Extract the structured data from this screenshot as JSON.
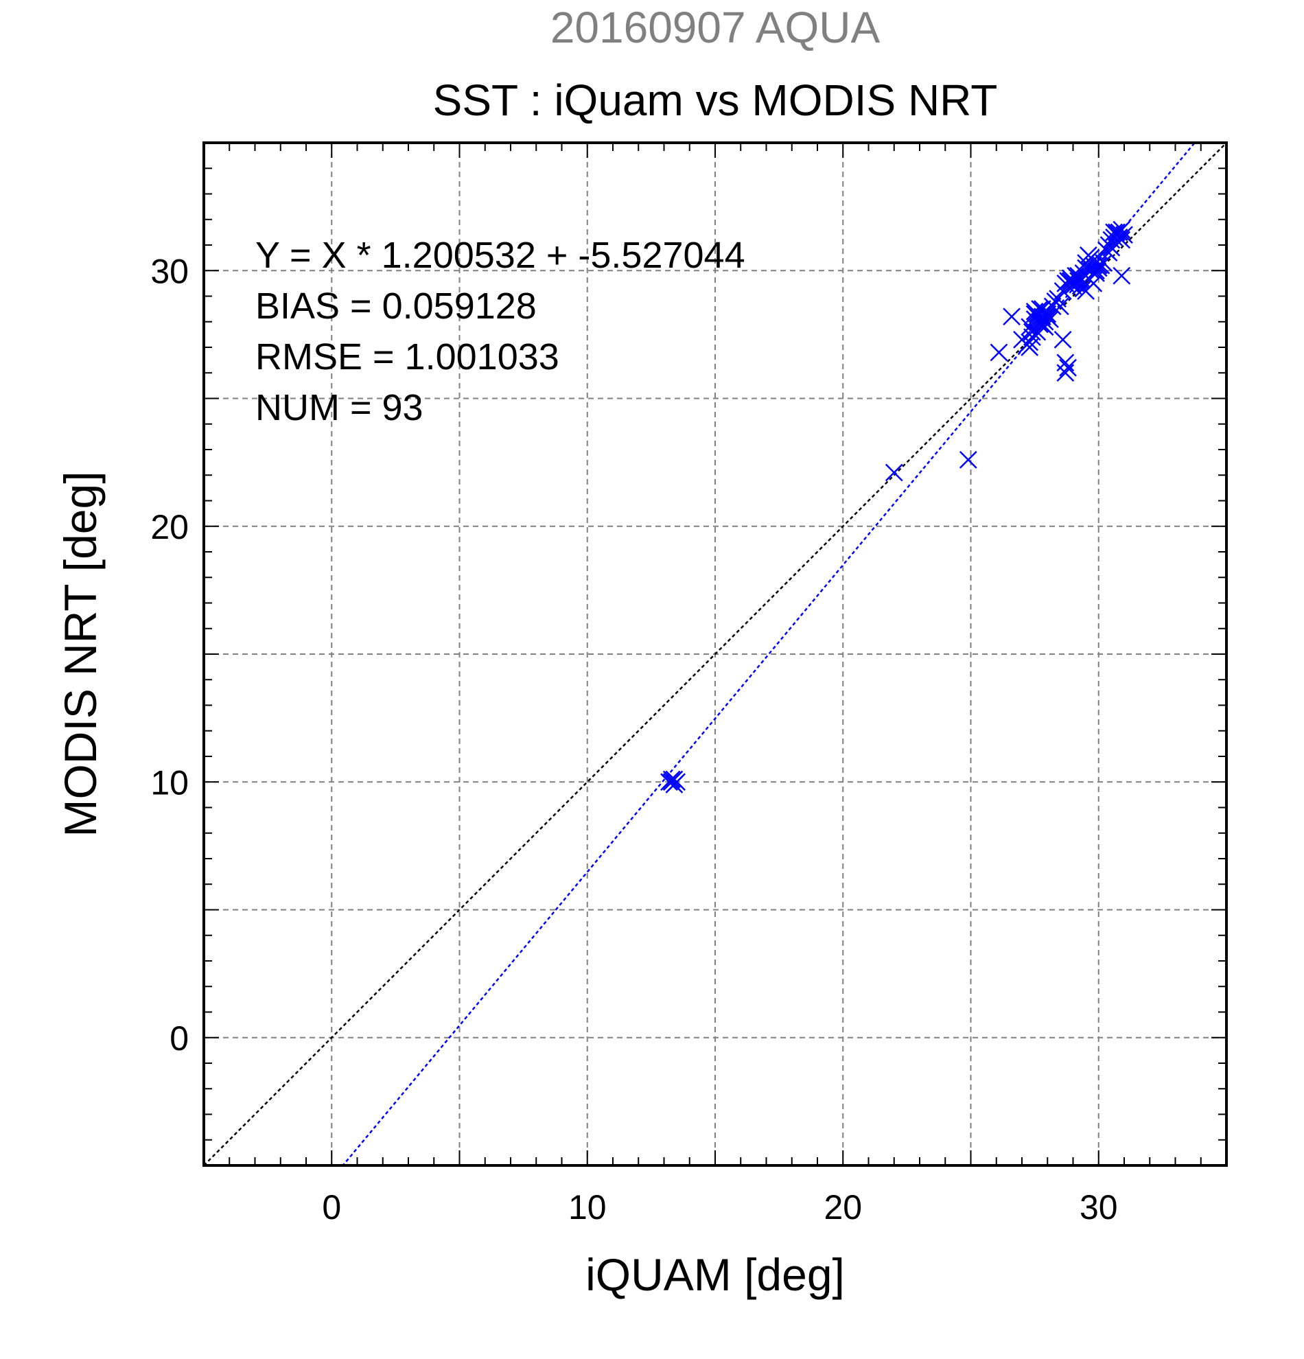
{
  "header": {
    "subtitle": "20160907 AQUA",
    "title": "SST : iQuam vs MODIS NRT"
  },
  "stats": {
    "regression": "Y = X * 1.200532 + -5.527044",
    "bias": "BIAS = 0.059128",
    "rmse": "RMSE = 1.001033",
    "num": "NUM = 93"
  },
  "chart_data": {
    "type": "scatter",
    "xlabel": "iQUAM [deg]",
    "ylabel": "MODIS NRT [deg]",
    "xlim": [
      -5,
      35
    ],
    "ylim": [
      -5,
      35
    ],
    "x_ticks": [
      0,
      10,
      20,
      30
    ],
    "y_ticks": [
      0,
      10,
      20,
      30
    ],
    "x_tick_labels": [
      "0",
      "10",
      "20",
      "30"
    ],
    "y_tick_labels": [
      "0",
      "10",
      "20",
      "30"
    ],
    "minor_tick_step": 1,
    "grid_step": 5,
    "grid": true,
    "marker": "x",
    "colors": {
      "points": "#0000ff",
      "fit_line": "#0000ff",
      "identity_line": "#000000",
      "grid": "#808080",
      "subtitle": "#808080"
    },
    "fit": {
      "slope": 1.200532,
      "intercept": -5.527044
    },
    "identity": {
      "slope": 1,
      "intercept": 0
    },
    "series": [
      {
        "x": [
          13.2,
          13.3,
          13.4,
          13.5,
          13.3,
          13.4,
          22.0,
          24.9,
          26.1,
          26.6,
          27.0,
          27.2,
          27.3,
          27.4,
          27.3,
          27.5,
          27.6,
          27.7,
          27.8,
          27.5,
          27.6,
          27.9,
          28.0,
          27.7,
          27.8,
          27.6,
          27.9,
          28.1,
          27.4,
          27.7,
          27.5,
          27.8,
          28.0,
          27.6,
          27.9,
          28.2,
          28.4,
          28.6,
          28.7,
          28.8,
          28.9,
          29.0,
          29.1,
          29.2,
          29.3,
          29.4,
          29.5,
          29.6,
          29.7,
          29.8,
          29.3,
          29.5,
          29.7,
          29.9,
          30.0,
          29.8,
          29.6,
          30.1,
          30.3,
          30.4,
          30.5,
          30.6,
          30.7,
          30.8,
          30.9,
          31.0,
          30.8,
          30.6,
          30.9,
          30.7,
          28.6,
          28.7,
          28.7,
          28.8,
          29.8,
          30.9,
          29.0,
          29.2,
          29.4,
          28.9,
          29.1,
          29.3,
          29.5,
          30.2,
          30.4,
          29.9,
          28.5,
          28.3,
          30.0,
          30.5,
          27.8,
          28.0,
          27.3
        ],
        "y": [
          10.0,
          10.0,
          10.1,
          10.0,
          10.1,
          9.9,
          22.1,
          22.6,
          26.8,
          28.2,
          27.3,
          27.1,
          27.0,
          27.4,
          27.8,
          28.1,
          28.3,
          28.0,
          28.2,
          28.4,
          27.6,
          28.0,
          28.3,
          28.5,
          27.9,
          28.2,
          28.4,
          28.1,
          27.6,
          27.9,
          28.3,
          28.5,
          28.2,
          28.0,
          27.8,
          28.6,
          28.9,
          29.2,
          29.5,
          29.6,
          29.7,
          29.5,
          29.8,
          29.6,
          29.4,
          29.9,
          30.1,
          29.7,
          30.0,
          30.2,
          29.6,
          30.3,
          30.5,
          29.9,
          30.1,
          30.4,
          30.6,
          30.2,
          30.8,
          31.0,
          31.2,
          31.5,
          31.4,
          31.3,
          31.6,
          31.4,
          31.5,
          31.3,
          31.2,
          31.5,
          27.3,
          26.4,
          26.0,
          26.2,
          29.5,
          29.8,
          29.4,
          29.8,
          29.3,
          29.6,
          29.5,
          29.7,
          29.2,
          30.3,
          30.7,
          30.0,
          28.6,
          28.8,
          30.2,
          30.9,
          28.1,
          28.2,
          27.2
        ]
      }
    ]
  }
}
